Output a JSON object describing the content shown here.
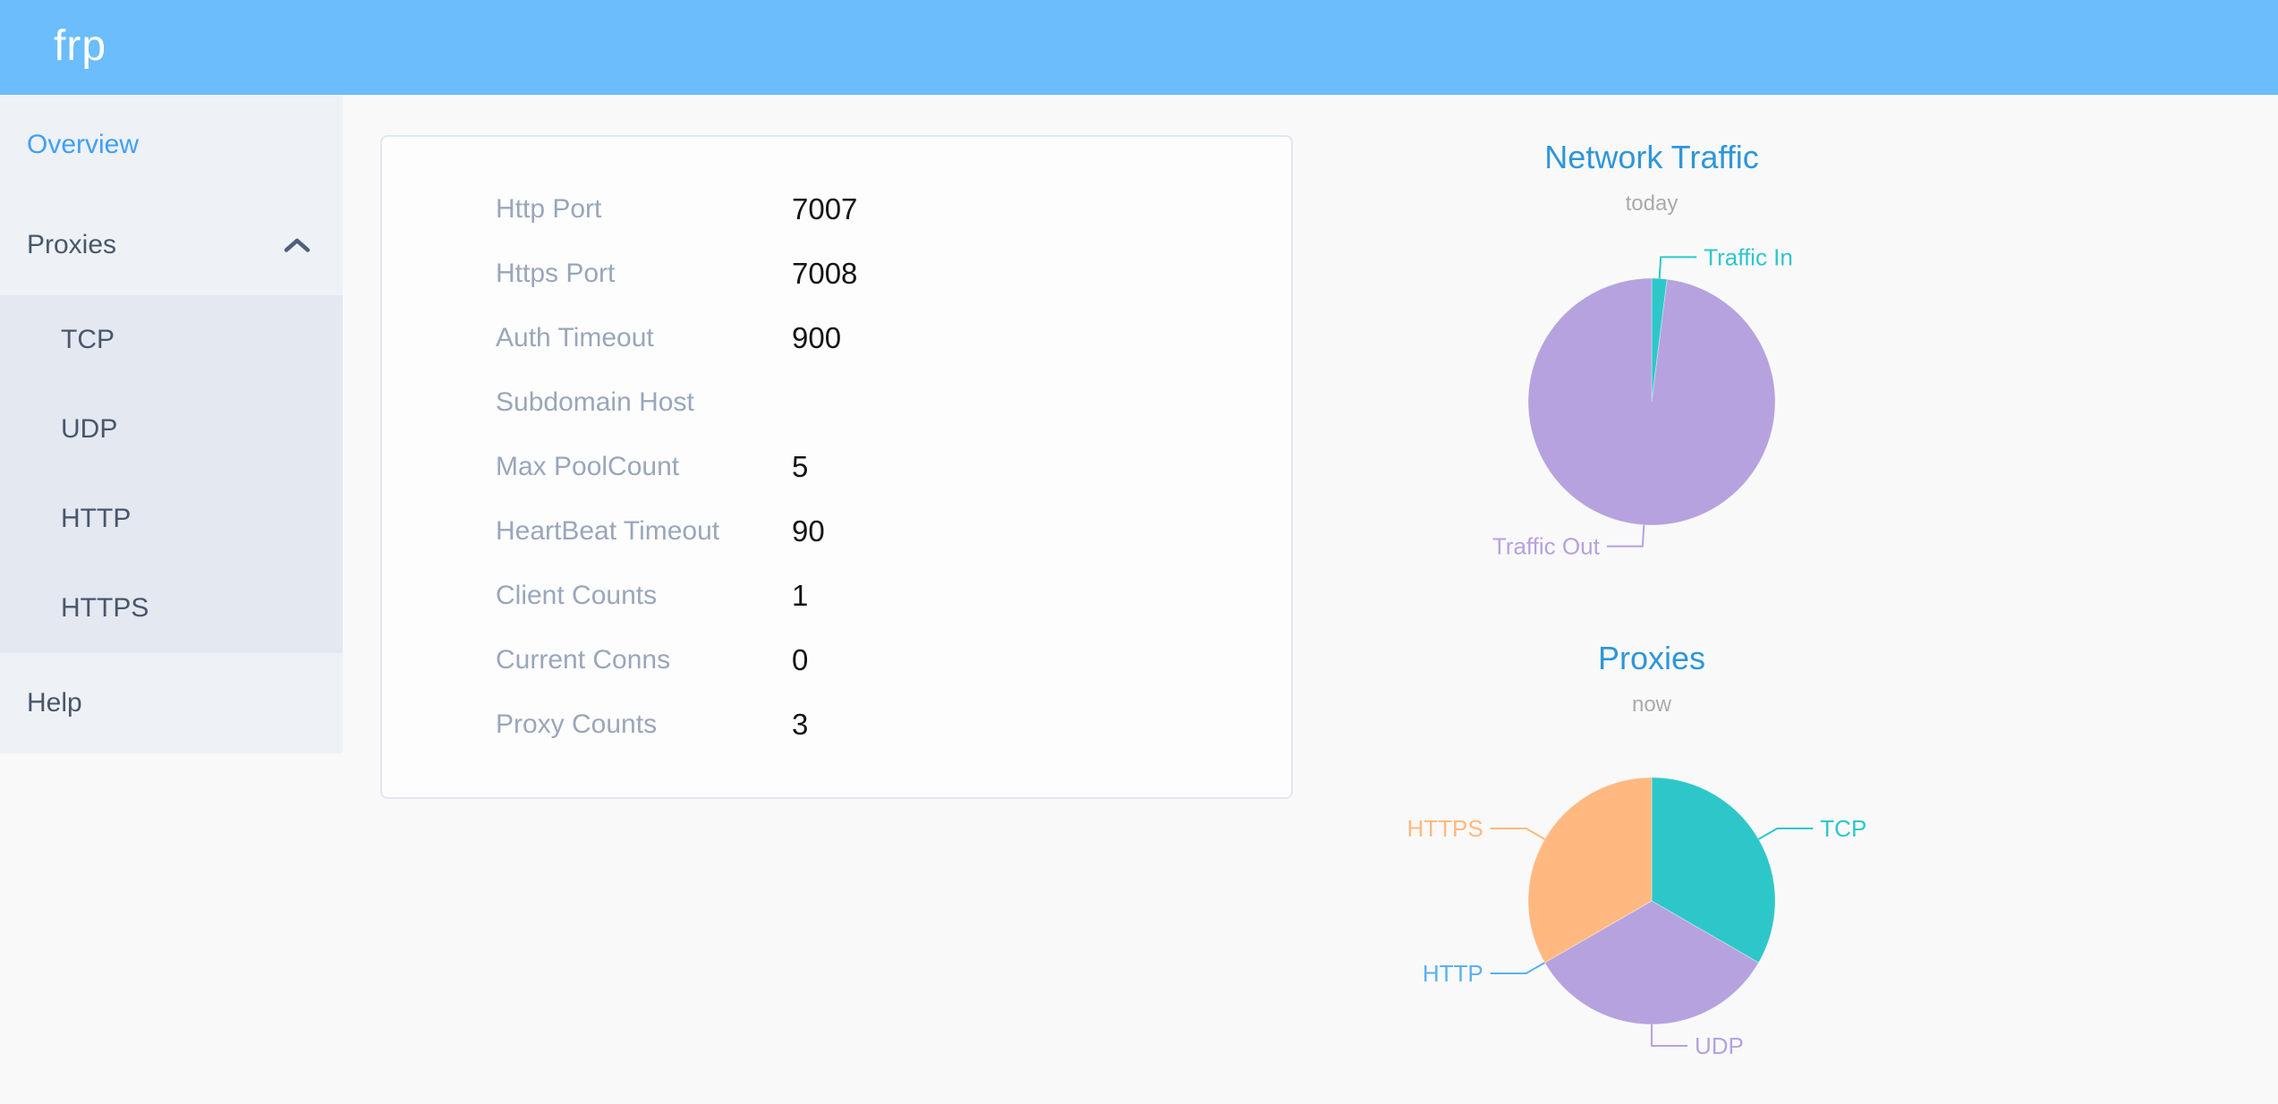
{
  "header": {
    "logo": "frp"
  },
  "sidebar": {
    "items": [
      {
        "label": "Overview",
        "active": true
      },
      {
        "label": "Proxies",
        "expanded": true,
        "children": [
          "TCP",
          "UDP",
          "HTTP",
          "HTTPS"
        ]
      },
      {
        "label": "Help"
      }
    ]
  },
  "overview_card": {
    "rows": [
      {
        "label": "Http Port",
        "value": "7007"
      },
      {
        "label": "Https Port",
        "value": "7008"
      },
      {
        "label": "Auth Timeout",
        "value": "900"
      },
      {
        "label": "Subdomain Host",
        "value": ""
      },
      {
        "label": "Max PoolCount",
        "value": "5"
      },
      {
        "label": "HeartBeat Timeout",
        "value": "90"
      },
      {
        "label": "Client Counts",
        "value": "1"
      },
      {
        "label": "Current Conns",
        "value": "0"
      },
      {
        "label": "Proxy Counts",
        "value": "3"
      }
    ]
  },
  "chart_data": [
    {
      "type": "pie",
      "title": "Network Traffic",
      "subtitle": "today",
      "unit": "percent (estimated from arc angles)",
      "label_position": "outside",
      "legend": "none",
      "series": [
        {
          "name": "Traffic In",
          "value": 2,
          "color": "#2ec7c9"
        },
        {
          "name": "Traffic Out",
          "value": 98,
          "color": "#b6a2de"
        }
      ]
    },
    {
      "type": "pie",
      "title": "Proxies",
      "subtitle": "now",
      "unit": "proxy count",
      "label_position": "outside",
      "legend": "none",
      "series": [
        {
          "name": "TCP",
          "value": 1,
          "color": "#2ec7c9"
        },
        {
          "name": "UDP",
          "value": 1,
          "color": "#b6a2de"
        },
        {
          "name": "HTTP",
          "value": 0,
          "color": "#5ab1ef"
        },
        {
          "name": "HTTPS",
          "value": 1,
          "color": "#ffb980"
        }
      ]
    }
  ],
  "colors": {
    "header_bg": "#6bbdfc",
    "sidebar_bg": "#eef1f6",
    "submenu_bg": "#e4e8f1",
    "menu_text": "#48576a",
    "active_menu": "#3fa0f7",
    "label_gray": "#9aa6ba",
    "value_black": "#141414",
    "card_bg": "#fdfdfe",
    "card_border": "#e2e6f2",
    "page_bg": "#f9f9fa",
    "chart_title": "#2e96d9",
    "chart_subtitle": "#aaaaaa"
  }
}
